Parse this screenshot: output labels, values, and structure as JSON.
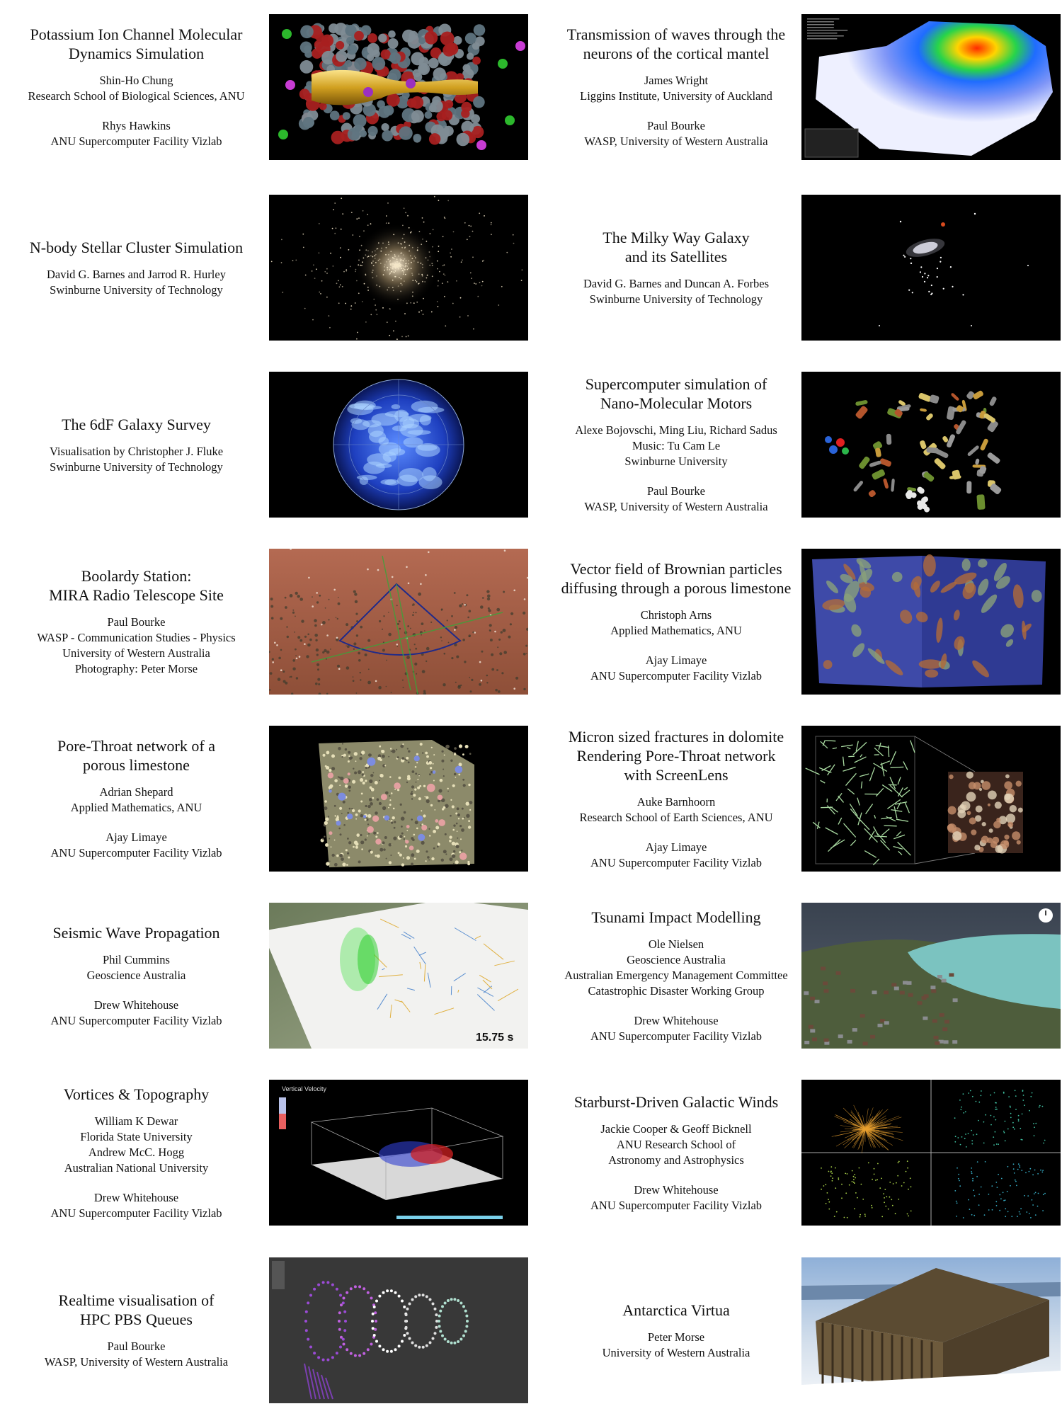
{
  "entries": [
    {
      "title": [
        "Potassium Ion Channel Molecular",
        "Dynamics Simulation"
      ],
      "blocks": [
        [
          "Shin-Ho Chung",
          "Research School of Biological Sciences, ANU"
        ],
        [
          "Rhys Hawkins",
          "ANU Supercomputer Facility Vizlab"
        ]
      ],
      "image_icon": "ion-channel-image"
    },
    {
      "title": [
        "Transmission of waves through the",
        "neurons of the cortical mantel"
      ],
      "blocks": [
        [
          "James Wright",
          "Liggins Institute, University of Auckland"
        ],
        [
          "Paul Bourke",
          "WASP, University of Western Australia"
        ]
      ],
      "image_icon": "cortical-wave-image"
    },
    {
      "title": [
        "N-body Stellar Cluster Simulation"
      ],
      "blocks": [
        [
          "David G. Barnes and Jarrod R. Hurley",
          "Swinburne University of Technology"
        ]
      ],
      "image_icon": "star-cluster-image"
    },
    {
      "title": [
        "The Milky Way Galaxy",
        "and its Satellites"
      ],
      "blocks": [
        [
          "David G. Barnes and Duncan A. Forbes",
          "Swinburne University of Technology"
        ]
      ],
      "image_icon": "milky-way-image"
    },
    {
      "title": [
        "The 6dF Galaxy Survey"
      ],
      "blocks": [
        [
          "Visualisation by Christopher J. Fluke",
          "Swinburne University of Technology"
        ]
      ],
      "image_icon": "galaxy-survey-image"
    },
    {
      "title": [
        "Supercomputer simulation of",
        "Nano-Molecular Motors"
      ],
      "blocks": [
        [
          "Alexe Bojovschi, Ming Liu, Richard Sadus",
          "Music: Tu Cam Le",
          "Swinburne University"
        ],
        [
          "Paul Bourke",
          "WASP, University of Western Australia"
        ]
      ],
      "image_icon": "molecular-motor-image"
    },
    {
      "title": [
        "Boolardy Station:",
        "MIRA Radio Telescope Site"
      ],
      "blocks": [
        [
          "Paul Bourke",
          "WASP - Communication Studies - Physics",
          "University of Western Australia",
          "Photography: Peter Morse"
        ]
      ],
      "image_icon": "telescope-site-image"
    },
    {
      "title": [
        "Vector field of Brownian particles",
        "diffusing through a porous limestone"
      ],
      "blocks": [
        [
          "Christoph Arns",
          "Applied Mathematics, ANU"
        ],
        [
          "Ajay Limaye",
          "ANU Supercomputer Facility Vizlab"
        ]
      ],
      "image_icon": "limestone-vector-image"
    },
    {
      "title": [
        "Pore-Throat network of a",
        "porous limestone"
      ],
      "blocks": [
        [
          "Adrian Shepard",
          "Applied Mathematics, ANU"
        ],
        [
          "Ajay Limaye",
          "ANU Supercomputer Facility Vizlab"
        ]
      ],
      "image_icon": "pore-network-image"
    },
    {
      "title": [
        "Micron sized fractures in dolomite",
        "Rendering Pore-Throat network",
        "with ScreenLens"
      ],
      "blocks": [
        [
          "Auke Barnhoorn",
          "Research School of Earth Sciences, ANU"
        ],
        [
          "Ajay Limaye",
          "ANU Supercomputer Facility Vizlab"
        ]
      ],
      "image_icon": "dolomite-fracture-image"
    },
    {
      "title": [
        "Seismic Wave Propagation"
      ],
      "blocks": [
        [
          "Phil Cummins",
          "Geoscience Australia"
        ],
        [
          "Drew Whitehouse",
          "ANU Supercomputer Facility Vizlab"
        ]
      ],
      "image_icon": "seismic-map-image",
      "image_label": "15.75 s"
    },
    {
      "title": [
        "Tsunami Impact Modelling"
      ],
      "blocks": [
        [
          "Ole Nielsen",
          "Geoscience Australia",
          "Australian Emergency Management Committee",
          "Catastrophic Disaster Working Group"
        ],
        [
          "Drew Whitehouse",
          "ANU Supercomputer Facility Vizlab"
        ]
      ],
      "image_icon": "tsunami-coast-image"
    },
    {
      "title": [
        "Vortices & Topography"
      ],
      "blocks": [
        [
          "William K Dewar",
          "Florida State University",
          "Andrew McC. Hogg",
          "Australian National University"
        ],
        [
          "Drew Whitehouse",
          "ANU Supercomputer Facility Vizlab"
        ]
      ],
      "image_icon": "vortex-box-image",
      "image_label": "Vertical Velocity"
    },
    {
      "title": [
        "Starburst-Driven Galactic Winds"
      ],
      "blocks": [
        [
          "Jackie Cooper & Geoff Bicknell",
          "ANU Research School of",
          "Astronomy and Astrophysics"
        ],
        [
          "Drew Whitehouse",
          "ANU Supercomputer Facility Vizlab"
        ]
      ],
      "image_icon": "galactic-wind-image"
    },
    {
      "title": [
        "Realtime visualisation of",
        "HPC PBS Queues"
      ],
      "blocks": [
        [
          "Paul Bourke",
          "WASP, University of Western Australia"
        ]
      ],
      "image_icon": "pbs-queue-image"
    },
    {
      "title": [
        "Antarctica Virtua"
      ],
      "blocks": [
        [
          "Peter Morse",
          "University of Western Australia"
        ]
      ],
      "image_icon": "antarctic-hut-image"
    }
  ]
}
